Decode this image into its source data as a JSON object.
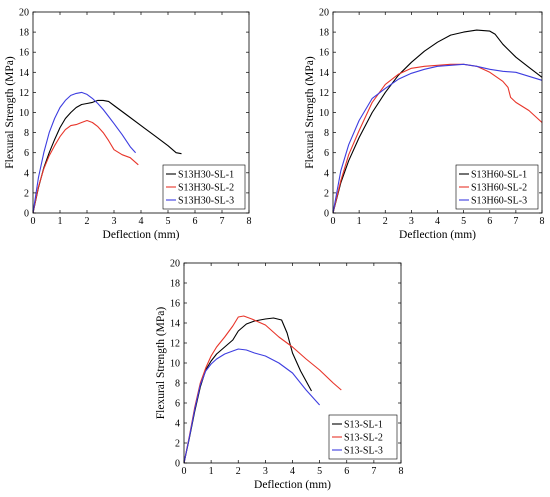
{
  "chart_data": [
    {
      "type": "line",
      "xlabel": "Deflection (mm)",
      "ylabel": "Flexural Strength (MPa)",
      "xlim": [
        0,
        8
      ],
      "ylim": [
        0,
        20
      ],
      "xticks": [
        "0",
        "1",
        "2",
        "3",
        "4",
        "5",
        "6",
        "7",
        "8"
      ],
      "yticks": [
        "0",
        "2",
        "4",
        "6",
        "8",
        "10",
        "12",
        "14",
        "16",
        "18",
        "20"
      ],
      "grid": false,
      "legend_position": "bottom-right",
      "series": [
        {
          "name": "S13H30-SL-1",
          "color": "#000000",
          "x": [
            0,
            0.2,
            0.4,
            0.6,
            0.8,
            1.0,
            1.2,
            1.4,
            1.6,
            1.8,
            2.0,
            2.2,
            2.4,
            2.6,
            2.8,
            3.0,
            3.5,
            4.0,
            4.5,
            5.0,
            5.3,
            5.5
          ],
          "y": [
            0,
            2.5,
            4.5,
            6.0,
            7.3,
            8.5,
            9.4,
            10.0,
            10.5,
            10.8,
            10.9,
            11.0,
            11.2,
            11.2,
            11.1,
            10.7,
            9.7,
            8.7,
            7.7,
            6.7,
            6.0,
            5.9
          ]
        },
        {
          "name": "S13H30-SL-2",
          "color": "#e8352a",
          "x": [
            0,
            0.2,
            0.4,
            0.6,
            0.8,
            1.0,
            1.2,
            1.4,
            1.6,
            1.8,
            2.0,
            2.2,
            2.4,
            2.6,
            2.8,
            3.0,
            3.3,
            3.6,
            3.9
          ],
          "y": [
            0,
            2.6,
            4.4,
            5.7,
            6.7,
            7.6,
            8.3,
            8.7,
            8.8,
            9.0,
            9.2,
            9.0,
            8.6,
            8.0,
            7.2,
            6.3,
            5.8,
            5.5,
            4.8
          ]
        },
        {
          "name": "S13H30-SL-3",
          "color": "#3d3de0",
          "x": [
            0,
            0.2,
            0.4,
            0.6,
            0.8,
            1.0,
            1.2,
            1.4,
            1.6,
            1.8,
            2.0,
            2.2,
            2.4,
            2.6,
            2.8,
            3.0,
            3.3,
            3.6,
            3.8
          ],
          "y": [
            0,
            3.5,
            6.0,
            8.0,
            9.4,
            10.5,
            11.2,
            11.7,
            11.9,
            12.0,
            11.8,
            11.4,
            10.9,
            10.3,
            9.6,
            8.9,
            7.8,
            6.6,
            6.0
          ]
        }
      ]
    },
    {
      "type": "line",
      "xlabel": "Deflection (mm)",
      "ylabel": "Flexural Strength (MPa)",
      "xlim": [
        0,
        8
      ],
      "ylim": [
        0,
        20
      ],
      "xticks": [
        "0",
        "1",
        "2",
        "3",
        "4",
        "5",
        "6",
        "7",
        "8"
      ],
      "yticks": [
        "0",
        "2",
        "4",
        "6",
        "8",
        "10",
        "12",
        "14",
        "16",
        "18",
        "20"
      ],
      "grid": false,
      "legend_position": "bottom-right",
      "series": [
        {
          "name": "S13H60-SL-1",
          "color": "#000000",
          "x": [
            0,
            0.3,
            0.6,
            1.0,
            1.5,
            2.0,
            2.5,
            3.0,
            3.5,
            4.0,
            4.5,
            5.0,
            5.5,
            6.0,
            6.2,
            6.5,
            7.0,
            7.5,
            8.0
          ],
          "y": [
            0,
            3.0,
            5.2,
            7.5,
            10.0,
            12.0,
            13.7,
            15.0,
            16.1,
            17.0,
            17.7,
            18.0,
            18.2,
            18.1,
            17.8,
            16.8,
            15.5,
            14.5,
            13.5
          ]
        },
        {
          "name": "S13H60-SL-2",
          "color": "#e8352a",
          "x": [
            0,
            0.3,
            0.6,
            1.0,
            1.5,
            2.0,
            2.5,
            3.0,
            3.5,
            4.0,
            4.5,
            5.0,
            5.5,
            6.0,
            6.5,
            6.7,
            6.8,
            7.0,
            7.5,
            8.0
          ],
          "y": [
            0,
            3.2,
            5.8,
            8.2,
            11.0,
            12.8,
            13.8,
            14.4,
            14.6,
            14.7,
            14.8,
            14.8,
            14.6,
            14.0,
            13.1,
            12.5,
            11.5,
            11.0,
            10.2,
            9.0
          ]
        },
        {
          "name": "S13H60-SL-3",
          "color": "#3d3de0",
          "x": [
            0,
            0.3,
            0.6,
            1.0,
            1.5,
            2.0,
            2.5,
            3.0,
            3.5,
            4.0,
            4.5,
            5.0,
            5.5,
            6.0,
            6.5,
            7.0,
            7.5,
            8.0
          ],
          "y": [
            0,
            4.2,
            6.8,
            9.2,
            11.4,
            12.4,
            13.3,
            13.9,
            14.3,
            14.6,
            14.7,
            14.8,
            14.6,
            14.3,
            14.1,
            14.0,
            13.6,
            13.2
          ]
        }
      ]
    },
    {
      "type": "line",
      "xlabel": "Deflection (mm)",
      "ylabel": "Flexural Strength (MPa)",
      "xlim": [
        0,
        8
      ],
      "ylim": [
        0,
        20
      ],
      "xticks": [
        "0",
        "1",
        "2",
        "3",
        "4",
        "5",
        "6",
        "7",
        "8"
      ],
      "yticks": [
        "0",
        "2",
        "4",
        "6",
        "8",
        "10",
        "12",
        "14",
        "16",
        "18",
        "20"
      ],
      "grid": false,
      "legend_position": "bottom-right",
      "series": [
        {
          "name": "S13-SL-1",
          "color": "#000000",
          "x": [
            0,
            0.2,
            0.4,
            0.6,
            0.8,
            1.0,
            1.2,
            1.5,
            1.8,
            2.0,
            2.3,
            2.6,
            3.0,
            3.3,
            3.6,
            3.8,
            4.0,
            4.3,
            4.7
          ],
          "y": [
            0,
            2.5,
            5.2,
            7.6,
            9.3,
            10.2,
            10.9,
            11.6,
            12.3,
            13.2,
            13.9,
            14.2,
            14.4,
            14.5,
            14.3,
            13.0,
            11.0,
            9.2,
            7.2
          ]
        },
        {
          "name": "S13-SL-2",
          "color": "#e8352a",
          "x": [
            0,
            0.2,
            0.4,
            0.6,
            0.8,
            1.0,
            1.2,
            1.5,
            1.8,
            2.0,
            2.2,
            2.5,
            3.0,
            3.5,
            4.0,
            4.5,
            5.0,
            5.5,
            5.8
          ],
          "y": [
            0,
            2.7,
            5.6,
            8.0,
            9.5,
            10.7,
            11.6,
            12.6,
            13.7,
            14.6,
            14.7,
            14.4,
            13.8,
            12.6,
            11.6,
            10.4,
            9.3,
            8.0,
            7.3
          ]
        },
        {
          "name": "S13-SL-3",
          "color": "#3d3de0",
          "x": [
            0,
            0.2,
            0.4,
            0.6,
            0.8,
            1.0,
            1.2,
            1.5,
            1.8,
            2.0,
            2.3,
            2.6,
            3.0,
            3.5,
            4.0,
            4.5,
            5.0
          ],
          "y": [
            0,
            2.6,
            5.4,
            7.8,
            9.2,
            9.9,
            10.4,
            10.9,
            11.2,
            11.4,
            11.3,
            11.0,
            10.7,
            10.0,
            9.0,
            7.3,
            5.8
          ]
        }
      ]
    }
  ]
}
